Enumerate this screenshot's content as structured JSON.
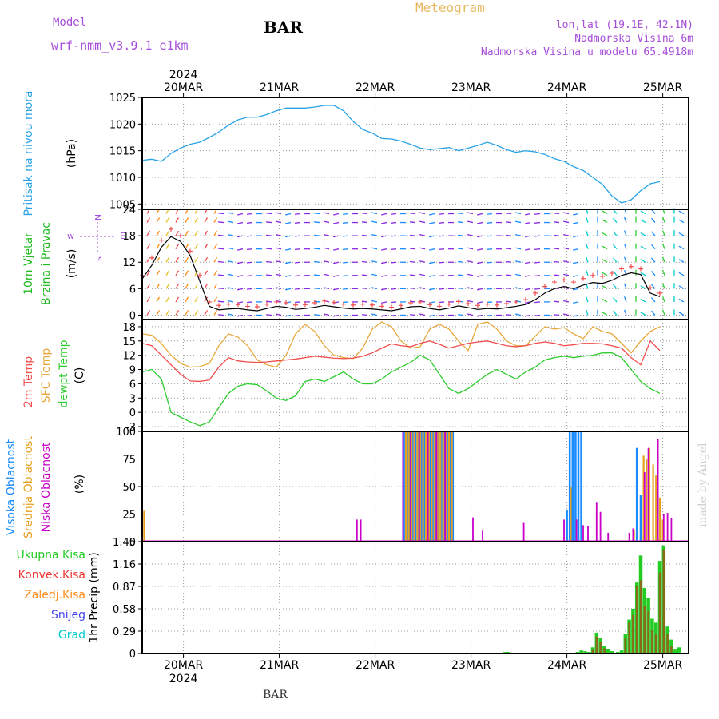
{
  "header": {
    "model_label": "Model",
    "model_name": "wrf-nmm_v3.9.1 e1km",
    "station": "BAR",
    "meteogram": "Meteogram",
    "loc_line1": "lon,lat (19.1E, 42.1N)",
    "loc_line2": "Nadmorska Visina 6m",
    "loc_line3": "Nadmorska Visina u modelu 65.4918m"
  },
  "footer": {
    "station": "BAR",
    "credit": "made by Angel"
  },
  "colors": {
    "pressure": "#29a3e6",
    "temp2m": "#f24d4d",
    "sfc": "#e6a83c",
    "dewpt": "#2ecc2e",
    "high_cloud": "#1a8cff",
    "mid_cloud": "#e6a020",
    "low_cloud": "#c800c8",
    "total_precip": "#22cc22",
    "conv_precip": "#ee3333",
    "frozen_precip": "#ff8c1a",
    "snow": "#4444ee",
    "hail": "#00cccc",
    "wind_text": "#22bb22",
    "purple": "#a64dd9"
  },
  "chart_data": [
    {
      "id": "pressure",
      "type": "line",
      "ylabel_main": "Pritisak na nivou mora",
      "ylabel_unit": "(hPa)",
      "ylim": [
        1004,
        1025
      ],
      "yticks": [
        1005,
        1010,
        1015,
        1020,
        1025
      ],
      "x_top_year": "2024",
      "x_top_labels": [
        "20MAR",
        "21MAR",
        "22MAR",
        "23MAR",
        "24MAR",
        "25MAR"
      ],
      "series": [
        {
          "values": [
            1013.2,
            1013.4,
            1013.0,
            1014.5,
            1015.5,
            1016.2,
            1016.6,
            1017.5,
            1018.5,
            1019.8,
            1020.8,
            1021.3,
            1021.3,
            1021.8,
            1022.5,
            1023.0,
            1023.0,
            1023.0,
            1023.2,
            1023.5,
            1023.5,
            1022.5,
            1020.5,
            1019.0,
            1018.3,
            1017.3,
            1017.2,
            1016.8,
            1016.2,
            1015.5,
            1015.2,
            1015.4,
            1015.6,
            1015.0,
            1015.5,
            1016.0,
            1016.6,
            1016.0,
            1015.2,
            1014.7,
            1015.0,
            1014.8,
            1014.3,
            1013.5,
            1013.0,
            1012.0,
            1011.3,
            1010.0,
            1008.7,
            1006.5,
            1005.2,
            1005.8,
            1007.5,
            1008.8,
            1009.2
          ]
        }
      ]
    },
    {
      "id": "wind",
      "type": "line",
      "ylabel_main": "10m Vjetar",
      "ylabel_sub": "Brzina i Pravac",
      "ylabel_unit": "(m/s)",
      "legend_compass": {
        "w": "w",
        "e": "E",
        "s": "s",
        "n": "N"
      },
      "ylim": [
        -1,
        24
      ],
      "yticks": [
        0,
        6,
        12,
        18,
        24
      ],
      "series": [
        {
          "name": "speed",
          "values": [
            8.2,
            11.3,
            15.4,
            17.8,
            16.7,
            13.5,
            7.7,
            2.0,
            1.2,
            1.4,
            1.5,
            1.2,
            1.0,
            1.5,
            2.0,
            1.8,
            1.3,
            1.5,
            1.8,
            2.2,
            1.9,
            1.6,
            1.4,
            1.5,
            1.4,
            1.2,
            1.0,
            1.4,
            1.9,
            2.0,
            1.5,
            1.2,
            1.6,
            2.1,
            1.7,
            1.3,
            1.5,
            1.4,
            1.7,
            2.0,
            2.4,
            3.5,
            5.0,
            6.0,
            6.5,
            6.0,
            6.8,
            7.4,
            7.2,
            7.9,
            9.0,
            9.6,
            9.2,
            5.0,
            4.2
          ]
        }
      ],
      "gust_values": [
        9.0,
        13.0,
        17.0,
        19.5,
        18.0,
        14.5,
        9.0,
        3.0,
        2.2,
        2.5,
        2.4,
        2.0,
        1.9,
        2.5,
        3.0,
        2.8,
        2.3,
        2.4,
        2.8,
        3.2,
        2.9,
        2.5,
        2.3,
        2.5,
        2.3,
        2.0,
        1.8,
        2.2,
        2.8,
        3.0,
        2.4,
        2.0,
        2.5,
        3.1,
        2.6,
        2.2,
        2.5,
        2.3,
        2.6,
        3.0,
        3.5,
        5.0,
        6.5,
        7.5,
        8.0,
        7.5,
        8.3,
        9.0,
        8.8,
        9.5,
        10.5,
        11.0,
        10.5,
        6.2,
        5.0
      ]
    },
    {
      "id": "temperature",
      "type": "line",
      "ylabel_main": "2m Temp",
      "ylabel_sub": "SFC Temp",
      "ylabel_sub2": "dewpt Temp",
      "ylabel_unit": "(C)",
      "ylim": [
        -4,
        19.5
      ],
      "yticks": [
        -3,
        0,
        3,
        6,
        9,
        12,
        15,
        18
      ],
      "series": [
        {
          "name": "2m Temp",
          "values": [
            14.5,
            14.0,
            12.0,
            10.0,
            8.0,
            6.6,
            6.5,
            6.8,
            9.5,
            11.5,
            10.8,
            10.6,
            10.5,
            10.6,
            10.8,
            11.0,
            11.2,
            11.5,
            11.8,
            11.6,
            11.4,
            11.3,
            11.4,
            11.8,
            12.5,
            13.5,
            14.4,
            14.0,
            13.8,
            14.5,
            15.0,
            14.3,
            13.5,
            14.0,
            14.5,
            14.8,
            15.0,
            14.5,
            14.0,
            13.8,
            14.0,
            14.5,
            14.8,
            14.5,
            14.0,
            14.2,
            14.5,
            14.5,
            14.4,
            14.0,
            13.5,
            11.5,
            10.0,
            15.0,
            13.0
          ]
        },
        {
          "name": "SFC Temp",
          "values": [
            16.5,
            16.2,
            14.5,
            12.0,
            10.3,
            9.5,
            9.6,
            10.3,
            14.0,
            16.5,
            15.8,
            14.0,
            11.0,
            10.0,
            9.5,
            12.0,
            16.5,
            18.5,
            17.0,
            14.0,
            12.0,
            11.5,
            11.3,
            13.5,
            17.5,
            19.0,
            18.0,
            15.0,
            13.5,
            13.8,
            17.5,
            18.5,
            17.5,
            15.0,
            13.0,
            18.5,
            19.0,
            17.5,
            15.0,
            14.0,
            14.0,
            16.0,
            18.0,
            17.5,
            17.8,
            16.5,
            15.5,
            18.0,
            17.0,
            16.5,
            14.5,
            12.5,
            15.0,
            17.0,
            18.0
          ]
        },
        {
          "name": "dewpt Temp",
          "values": [
            8.5,
            9.0,
            7.0,
            0.0,
            -1.0,
            -2.0,
            -2.8,
            -2.0,
            1.0,
            4.0,
            5.5,
            6.0,
            5.8,
            4.5,
            3.0,
            2.5,
            3.5,
            6.5,
            7.0,
            6.5,
            7.5,
            8.5,
            7.0,
            6.0,
            6.0,
            7.0,
            8.5,
            9.5,
            10.5,
            12.0,
            11.0,
            8.0,
            5.0,
            4.0,
            5.0,
            6.5,
            8.0,
            9.0,
            8.0,
            7.0,
            8.5,
            9.5,
            11.0,
            11.5,
            11.8,
            11.5,
            11.8,
            12.0,
            12.5,
            12.5,
            11.5,
            9.0,
            6.5,
            5.0,
            4.0
          ]
        }
      ]
    },
    {
      "id": "cloud",
      "type": "bar",
      "ylabel_main": "Visoka Oblacnost",
      "ylabel_sub": "Srednja Oblacnost",
      "ylabel_sub2": "Niska Oblacnost",
      "ylabel_unit": "(%)",
      "ylim": [
        0,
        100
      ],
      "yticks": [
        0,
        25,
        50,
        75,
        100
      ],
      "series": [
        {
          "name": "Visoka Oblacnost",
          "points": [
            [
              27.3,
              100
            ],
            [
              27.6,
              100
            ],
            [
              27.9,
              100
            ],
            [
              28.2,
              100
            ],
            [
              28.5,
              100
            ],
            [
              28.8,
              100
            ],
            [
              29.1,
              100
            ],
            [
              29.4,
              100
            ],
            [
              29.7,
              100
            ],
            [
              30.0,
              100
            ],
            [
              30.3,
              100
            ],
            [
              30.6,
              100
            ],
            [
              30.9,
              100
            ],
            [
              31.2,
              100
            ],
            [
              31.5,
              100
            ],
            [
              31.8,
              100
            ],
            [
              32.1,
              100
            ],
            [
              32.4,
              100
            ],
            [
              44.3,
              29
            ],
            [
              44.6,
              100
            ],
            [
              44.9,
              100
            ],
            [
              45.2,
              100
            ],
            [
              45.5,
              100
            ],
            [
              45.8,
              100
            ],
            [
              51.6,
              85
            ],
            [
              52.0,
              42
            ]
          ]
        },
        {
          "name": "Srednja Oblacnost",
          "points": [
            [
              0.2,
              28
            ],
            [
              27.5,
              100
            ],
            [
              27.8,
              100
            ],
            [
              28.1,
              100
            ],
            [
              28.4,
              100
            ],
            [
              28.7,
              100
            ],
            [
              29.0,
              100
            ],
            [
              29.3,
              100
            ],
            [
              29.6,
              100
            ],
            [
              29.9,
              100
            ],
            [
              30.2,
              100
            ],
            [
              30.5,
              100
            ],
            [
              30.8,
              100
            ],
            [
              31.1,
              100
            ],
            [
              31.4,
              100
            ],
            [
              31.7,
              100
            ],
            [
              32.0,
              100
            ],
            [
              32.3,
              100
            ],
            [
              44.7,
              50
            ],
            [
              51.3,
              10
            ],
            [
              52.3,
              78
            ],
            [
              52.6,
              75
            ],
            [
              52.9,
              85
            ],
            [
              53.3,
              70
            ],
            [
              53.6,
              60
            ],
            [
              54.0,
              40
            ],
            [
              54.3,
              20
            ]
          ]
        },
        {
          "name": "Niska Oblacnost",
          "points": [
            [
              22.4,
              20
            ],
            [
              22.8,
              20
            ],
            [
              27.2,
              100
            ],
            [
              28.0,
              100
            ],
            [
              28.9,
              100
            ],
            [
              29.8,
              100
            ],
            [
              30.7,
              100
            ],
            [
              31.6,
              100
            ],
            [
              34.5,
              22
            ],
            [
              35.5,
              10
            ],
            [
              39.8,
              17
            ],
            [
              44.0,
              20
            ],
            [
              45.3,
              20
            ],
            [
              46.0,
              15
            ],
            [
              46.5,
              14
            ],
            [
              47.4,
              36
            ],
            [
              47.8,
              27
            ],
            [
              48.6,
              8
            ],
            [
              50.8,
              8
            ],
            [
              51.2,
              12
            ],
            [
              52.4,
              63
            ],
            [
              52.8,
              85
            ],
            [
              53.8,
              93
            ],
            [
              54.4,
              25
            ],
            [
              54.8,
              26
            ],
            [
              55.2,
              21
            ]
          ]
        }
      ]
    },
    {
      "id": "precip",
      "type": "bar",
      "ylabel_unit": "1hr Precip (mm)",
      "legend": [
        "Ukupna Kisa",
        "Konvek.Kisa",
        "Zaledj.Kisa",
        "Snijeg",
        "Grad"
      ],
      "ylim": [
        0,
        1.45
      ],
      "yticks": [
        0,
        0.29,
        0.58,
        0.87,
        1.16,
        1.45
      ],
      "x_bottom_labels": [
        "20MAR",
        "21MAR",
        "22MAR",
        "23MAR",
        "24MAR",
        "25MAR"
      ],
      "x_bottom_year": "2024",
      "series": [
        {
          "name": "Ukupna Kisa",
          "points": [
            [
              37.8,
              0.02
            ],
            [
              38.2,
              0.02
            ],
            [
              45.4,
              0.02
            ],
            [
              45.8,
              0.04
            ],
            [
              46.2,
              0.03
            ],
            [
              46.6,
              0.02
            ],
            [
              47.0,
              0.08
            ],
            [
              47.4,
              0.27
            ],
            [
              47.8,
              0.2
            ],
            [
              48.2,
              0.1
            ],
            [
              48.6,
              0.06
            ],
            [
              49.0,
              0.03
            ],
            [
              49.6,
              0.02
            ],
            [
              50.0,
              0.04
            ],
            [
              50.4,
              0.25
            ],
            [
              50.8,
              0.44
            ],
            [
              51.2,
              0.58
            ],
            [
              51.6,
              0.92
            ],
            [
              52.0,
              1.27
            ],
            [
              52.4,
              0.85
            ],
            [
              52.8,
              0.72
            ],
            [
              53.2,
              0.45
            ],
            [
              53.6,
              0.4
            ],
            [
              54.0,
              1.2
            ],
            [
              54.4,
              1.4
            ],
            [
              54.8,
              0.35
            ],
            [
              55.2,
              0.18
            ],
            [
              55.6,
              0.05
            ],
            [
              56.0,
              0.08
            ]
          ]
        },
        {
          "name": "Konvek.Kisa",
          "points": [
            [
              47.0,
              0.05
            ],
            [
              47.4,
              0.22
            ],
            [
              47.8,
              0.15
            ],
            [
              48.2,
              0.07
            ],
            [
              50.4,
              0.2
            ],
            [
              50.8,
              0.4
            ],
            [
              51.2,
              0.5
            ],
            [
              51.6,
              0.88
            ],
            [
              52.0,
              0.95
            ],
            [
              52.4,
              0.62
            ],
            [
              52.8,
              0.55
            ],
            [
              53.2,
              0.3
            ],
            [
              53.6,
              0.25
            ],
            [
              54.0,
              1.05
            ],
            [
              54.4,
              1.35
            ],
            [
              54.8,
              0.25
            ],
            [
              55.2,
              0.1
            ]
          ]
        }
      ]
    }
  ]
}
